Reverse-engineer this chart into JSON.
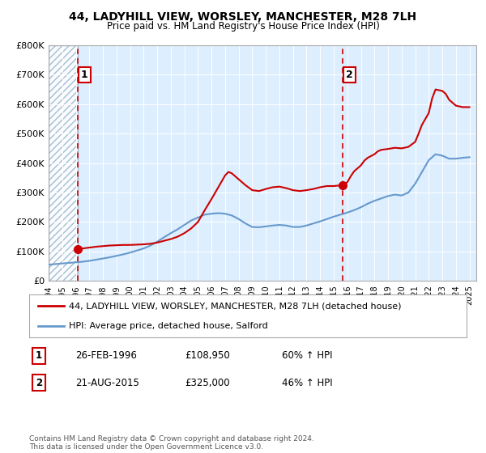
{
  "title": "44, LADYHILL VIEW, WORSLEY, MANCHESTER, M28 7LH",
  "subtitle": "Price paid vs. HM Land Registry's House Price Index (HPI)",
  "legend_line1": "44, LADYHILL VIEW, WORSLEY, MANCHESTER, M28 7LH (detached house)",
  "legend_line2": "HPI: Average price, detached house, Salford",
  "sale1_date": 1996.15,
  "sale1_price": 108950,
  "sale1_label": "1",
  "sale1_display": "26-FEB-1996",
  "sale1_amount": "£108,950",
  "sale1_hpi": "60% ↑ HPI",
  "sale2_date": 2015.64,
  "sale2_price": 325000,
  "sale2_label": "2",
  "sale2_display": "21-AUG-2015",
  "sale2_amount": "£325,000",
  "sale2_hpi": "46% ↑ HPI",
  "xmin": 1994.0,
  "xmax": 2025.5,
  "ymin": 0,
  "ymax": 800000,
  "price_color": "#cc0000",
  "hpi_color": "#6699cc",
  "background_color": "#ffffff",
  "plot_bg_color": "#ddeeff",
  "footer": "Contains HM Land Registry data © Crown copyright and database right 2024.\nThis data is licensed under the Open Government Licence v3.0.",
  "hpi_years": [
    1994.0,
    1994.5,
    1995.0,
    1995.5,
    1996.0,
    1996.5,
    1997.0,
    1997.5,
    1998.0,
    1998.5,
    1999.0,
    1999.5,
    2000.0,
    2000.5,
    2001.0,
    2001.5,
    2002.0,
    2002.5,
    2003.0,
    2003.5,
    2004.0,
    2004.5,
    2005.0,
    2005.5,
    2006.0,
    2006.5,
    2007.0,
    2007.5,
    2008.0,
    2008.5,
    2009.0,
    2009.5,
    2010.0,
    2010.5,
    2011.0,
    2011.5,
    2012.0,
    2012.5,
    2013.0,
    2013.5,
    2014.0,
    2014.5,
    2015.0,
    2015.5,
    2016.0,
    2016.5,
    2017.0,
    2017.5,
    2018.0,
    2018.5,
    2019.0,
    2019.5,
    2020.0,
    2020.5,
    2021.0,
    2021.5,
    2022.0,
    2022.5,
    2023.0,
    2023.5,
    2024.0,
    2024.5,
    2025.0
  ],
  "hpi_values": [
    55000,
    57000,
    59000,
    61000,
    63000,
    65000,
    68000,
    72000,
    76000,
    80000,
    85000,
    90000,
    96000,
    103000,
    110000,
    120000,
    133000,
    148000,
    162000,
    175000,
    190000,
    205000,
    215000,
    225000,
    228000,
    230000,
    228000,
    222000,
    210000,
    195000,
    183000,
    182000,
    185000,
    188000,
    190000,
    188000,
    183000,
    183000,
    188000,
    195000,
    202000,
    210000,
    218000,
    225000,
    232000,
    240000,
    250000,
    262000,
    272000,
    280000,
    288000,
    293000,
    290000,
    300000,
    330000,
    370000,
    410000,
    430000,
    425000,
    415000,
    415000,
    418000,
    420000
  ],
  "price_years": [
    1996.15,
    1996.5,
    1997.0,
    1997.5,
    1998.0,
    1998.5,
    1999.0,
    1999.5,
    2000.0,
    2000.5,
    2001.0,
    2001.5,
    2002.0,
    2002.5,
    2003.0,
    2003.5,
    2004.0,
    2004.5,
    2005.0,
    2005.5,
    2006.0,
    2006.5,
    2007.0,
    2007.25,
    2007.5,
    2008.0,
    2008.5,
    2009.0,
    2009.5,
    2010.0,
    2010.5,
    2011.0,
    2011.5,
    2012.0,
    2012.5,
    2013.0,
    2013.5,
    2014.0,
    2014.5,
    2015.0,
    2015.64,
    2016.0,
    2016.25,
    2016.5,
    2017.0,
    2017.25,
    2017.5,
    2018.0,
    2018.25,
    2018.5,
    2019.0,
    2019.25,
    2019.5,
    2020.0,
    2020.5,
    2021.0,
    2021.25,
    2021.5,
    2022.0,
    2022.25,
    2022.5,
    2023.0,
    2023.25,
    2023.5,
    2024.0,
    2024.5,
    2025.0
  ],
  "price_values": [
    108950,
    110000,
    113000,
    116000,
    118000,
    120000,
    121000,
    122000,
    122000,
    123000,
    124000,
    126000,
    130000,
    136000,
    142000,
    150000,
    162000,
    178000,
    200000,
    240000,
    278000,
    318000,
    358000,
    370000,
    365000,
    345000,
    325000,
    308000,
    305000,
    312000,
    318000,
    320000,
    315000,
    308000,
    305000,
    308000,
    312000,
    318000,
    322000,
    322000,
    325000,
    335000,
    355000,
    372000,
    392000,
    408000,
    418000,
    430000,
    440000,
    445000,
    448000,
    450000,
    452000,
    450000,
    455000,
    472000,
    500000,
    530000,
    570000,
    620000,
    650000,
    645000,
    635000,
    615000,
    595000,
    590000,
    590000
  ]
}
